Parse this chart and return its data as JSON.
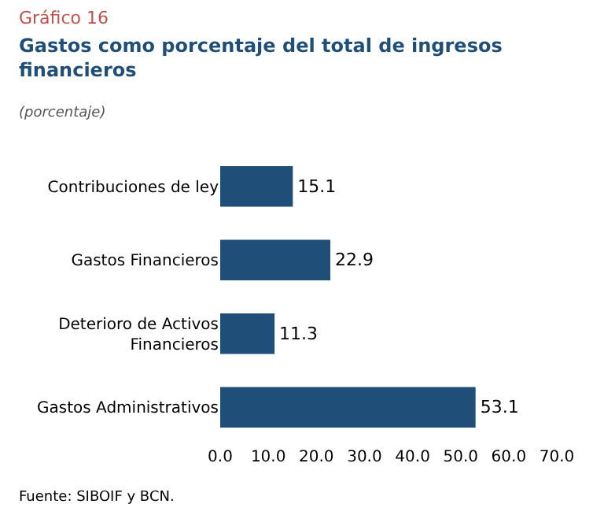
{
  "chart_data": {
    "type": "bar",
    "orientation": "horizontal",
    "title": "Gastos como porcentaje del total de ingresos financieros",
    "subtitle": "(porcentaje)",
    "annotations": [
      "Gráfico 16",
      "Fuente: SIBOIF y BCN."
    ],
    "categories": [
      "Contribuciones de ley",
      "Gastos Financieros",
      "Deterioro de Activos Financieros",
      "Gastos Administrativos"
    ],
    "values": [
      15.1,
      22.9,
      11.3,
      53.1
    ],
    "color": "#1f4e79",
    "data_labels": true,
    "xlim": [
      0,
      70
    ],
    "xticks": [
      {
        "value": 0,
        "label": "0.0"
      },
      {
        "value": 10,
        "label": "10.0"
      },
      {
        "value": 20,
        "label": "20.0"
      },
      {
        "value": 30,
        "label": "30.0"
      },
      {
        "value": 40,
        "label": "40.0"
      },
      {
        "value": 50,
        "label": "50.0"
      },
      {
        "value": 60,
        "label": "60.0"
      },
      {
        "value": 70,
        "label": "70.0"
      }
    ]
  }
}
